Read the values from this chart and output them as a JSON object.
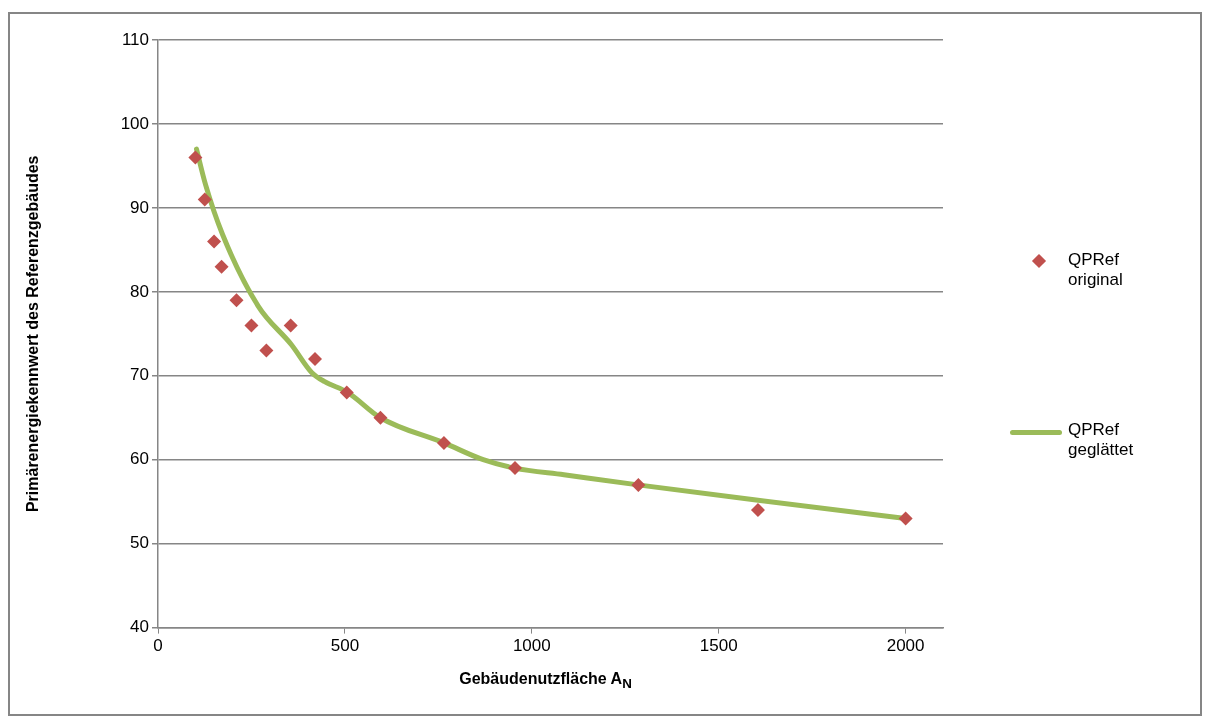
{
  "chart_data": {
    "type": "scatter",
    "xlabel": "Gebäudenutzfläche A$_{N}$",
    "ylabel": "Primärenergiekennwert des Referenzgebäudes",
    "xlim": [
      0,
      2100
    ],
    "xticks": [
      0,
      500,
      1000,
      1500,
      2000
    ],
    "ylim": [
      40,
      110
    ],
    "yticks": [
      40,
      50,
      60,
      70,
      80,
      90,
      100,
      110
    ],
    "grid": "y",
    "legend": "right",
    "series": [
      {
        "name": "QPRef original",
        "marker": "diamond",
        "color": "#c0504d",
        "x": [
          100,
          125,
          150,
          170,
          210,
          250,
          290,
          355,
          420,
          505,
          595,
          765,
          955,
          1285,
          1605,
          2000
        ],
        "values": [
          96,
          91,
          86,
          83,
          79,
          76,
          73,
          76,
          72,
          68,
          65,
          62,
          59,
          57,
          54,
          53
        ]
      },
      {
        "name": "QPRef geglättet",
        "type": "line",
        "marker": "none",
        "color": "#9bbb59",
        "x": [
          103,
          127,
          173,
          268,
          357,
          411,
          446,
          508,
          595,
          765,
          870,
          954,
          1086,
          1284,
          1600,
          2000
        ],
        "values": [
          97,
          92.8,
          86.8,
          78.3,
          73.7,
          70.4,
          69.3,
          68,
          65,
          62,
          60,
          59,
          58.2,
          57,
          55.2,
          53
        ]
      }
    ]
  }
}
